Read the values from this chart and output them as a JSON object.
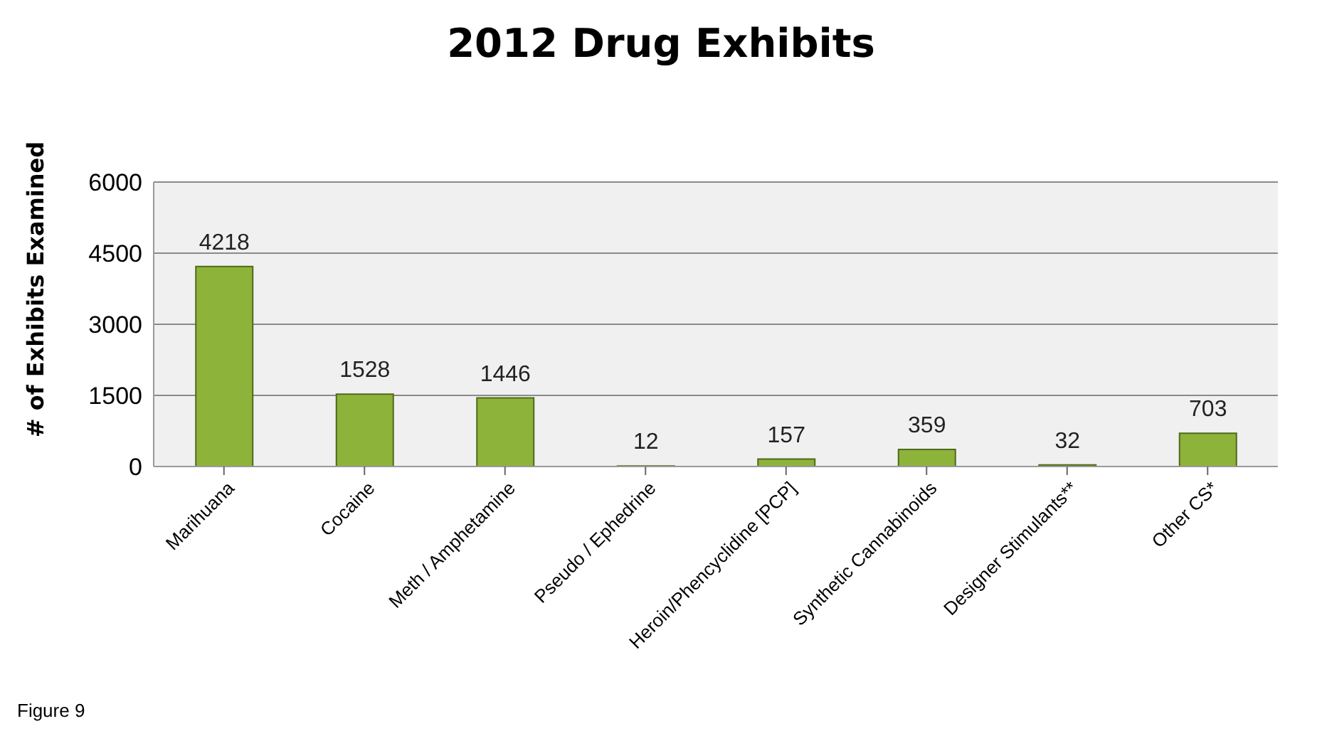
{
  "chart_data": {
    "type": "bar",
    "title": "2012 Drug Exhibits",
    "ylabel": "# of Exhibits Examined",
    "categories": [
      "Marihuana",
      "Cocaine",
      "Meth / Amphetamine",
      "Pseudo / Ephedrine",
      "Heroin/Phencyclidine [PCP]",
      "Synthetic Cannabinoids",
      "Designer Stimulants**",
      "Other CS*"
    ],
    "values": [
      4218,
      1528,
      1446,
      12,
      157,
      359,
      32,
      703
    ],
    "color": "#8db33a",
    "ylim": [
      0,
      6000
    ],
    "yticks": [
      0,
      1500,
      3000,
      4500,
      6000
    ],
    "grid": "y",
    "data_labels": true,
    "annotations": [
      "Figure 9"
    ]
  }
}
